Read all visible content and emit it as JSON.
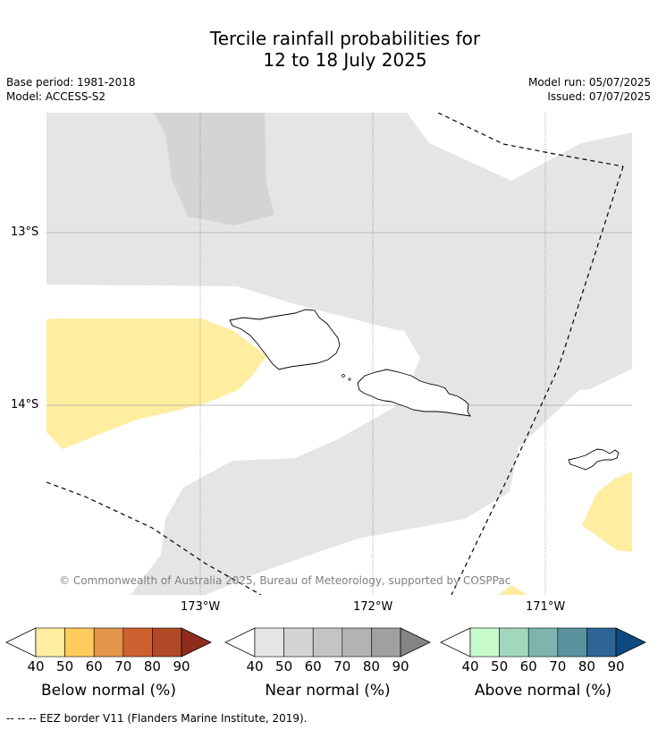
{
  "title_line1": "Tercile rainfall probabilities for",
  "title_line2": "12 to 18 July 2025",
  "meta": {
    "base_period": "Base period: 1981-2018",
    "model": "Model: ACCESS-S2",
    "model_run": "Model run: 05/07/2025",
    "issued": "Issued: 07/07/2025"
  },
  "map": {
    "lat_labels": [
      "13°S",
      "14°S"
    ],
    "lon_labels": [
      "173°W",
      "172°W",
      "171°W"
    ],
    "copyright": "© Commonwealth of Australia 2025, Bureau of Meteorology, supported by COSPPac",
    "colors": {
      "near_normal_40": "#e5e5e5",
      "near_normal_50": "#d4d4d4",
      "below_normal_40": "#ffeda0",
      "land_fill": "#ffffff"
    }
  },
  "colorbars": [
    {
      "title": "Below normal (%)",
      "ticks": [
        "40",
        "50",
        "60",
        "70",
        "80",
        "90"
      ],
      "colors": [
        "#ffeda0",
        "#fecc5c",
        "#e3954a",
        "#cf6131",
        "#b04a26",
        "#8f2d1c"
      ]
    },
    {
      "title": "Near normal (%)",
      "ticks": [
        "40",
        "50",
        "60",
        "70",
        "80",
        "90"
      ],
      "colors": [
        "#e5e5e5",
        "#d4d4d4",
        "#c4c4c4",
        "#b3b3b3",
        "#a0a0a0",
        "#858585"
      ]
    },
    {
      "title": "Above normal (%)",
      "ticks": [
        "40",
        "50",
        "60",
        "70",
        "80",
        "90"
      ],
      "colors": [
        "#c7fbcb",
        "#a2d7bd",
        "#7db5ae",
        "#5b929e",
        "#2f6496",
        "#0d4a82"
      ]
    }
  ],
  "footer": "--  --  -- EEZ border V11 (Flanders Marine Institute, 2019)."
}
